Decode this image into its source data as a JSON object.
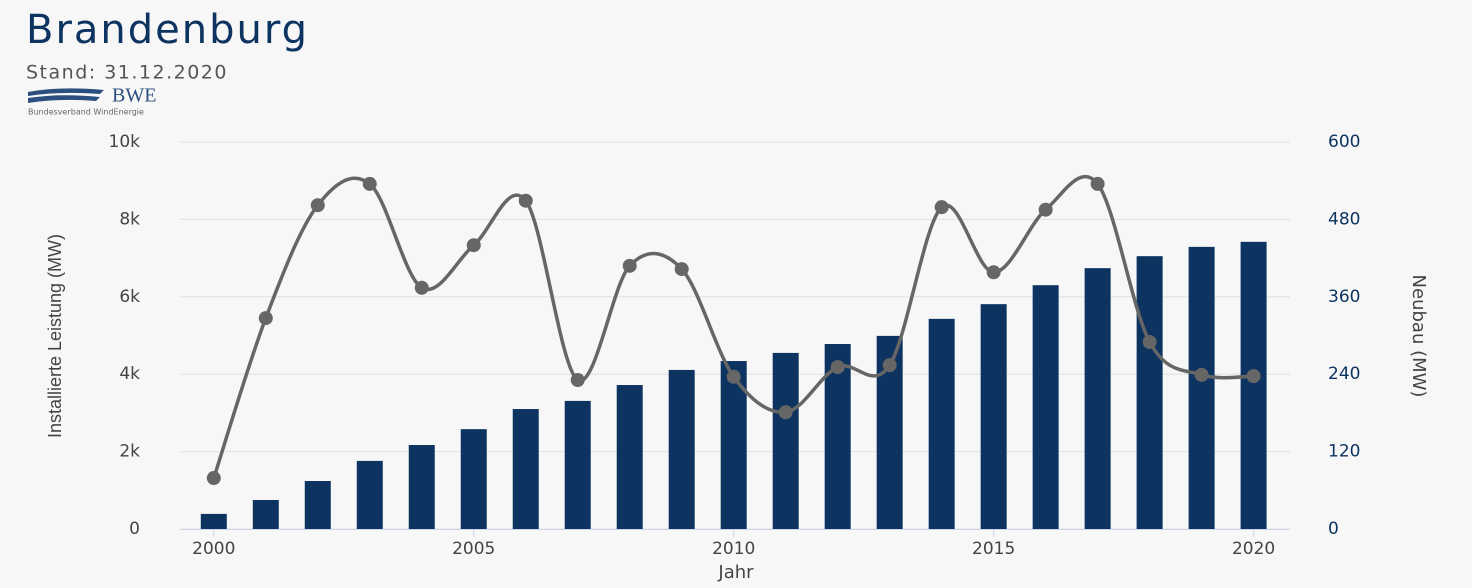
{
  "chart_data": {
    "type": "bar-line",
    "title": "Brandenburg",
    "subtitle": "Stand: 31.12.2020",
    "logo_text": "BWE",
    "logo_subtext": "Bundesverband WindEnergie",
    "x_label": "Jahr",
    "y_label": "Installierte Leistung (MW)",
    "y2_label": "Neubau (MW)",
    "x": [
      2000,
      2001,
      2002,
      2003,
      2004,
      2005,
      2006,
      2007,
      2008,
      2009,
      2010,
      2011,
      2012,
      2013,
      2014,
      2015,
      2016,
      2017,
      2018,
      2019,
      2020
    ],
    "series": [
      {
        "name": "Installierte Leistung",
        "type": "bar",
        "color": "#0d3461",
        "values": [
          390,
          750,
          1240,
          1760,
          2170,
          2580,
          3100,
          3310,
          3720,
          4110,
          4340,
          4550,
          4780,
          4990,
          5430,
          5810,
          6300,
          6740,
          7050,
          7290,
          7420
        ]
      },
      {
        "name": "Neubau",
        "type": "line",
        "axis": "y2",
        "color": "#666666",
        "values": [
          79,
          327,
          502,
          535,
          374,
          440,
          509,
          231,
          408,
          403,
          236,
          181,
          251,
          254,
          499,
          398,
          495,
          535,
          290,
          239,
          237
        ]
      }
    ],
    "xlim": [
      1999.35,
      2020.7
    ],
    "xticks": [
      2000,
      2005,
      2010,
      2015,
      2020
    ],
    "ylim": [
      0,
      10000
    ],
    "yticks": [
      0,
      {
        "value": 2000,
        "label": "2k"
      },
      {
        "value": 4000,
        "label": "4k"
      },
      {
        "value": 6000,
        "label": "6k"
      },
      {
        "value": 8000,
        "label": "8k"
      },
      {
        "value": 10000,
        "label": "10k"
      }
    ],
    "y2lim": [
      0,
      600
    ],
    "y2ticks": [
      0,
      120,
      240,
      360,
      480,
      600
    ],
    "grid": true
  }
}
